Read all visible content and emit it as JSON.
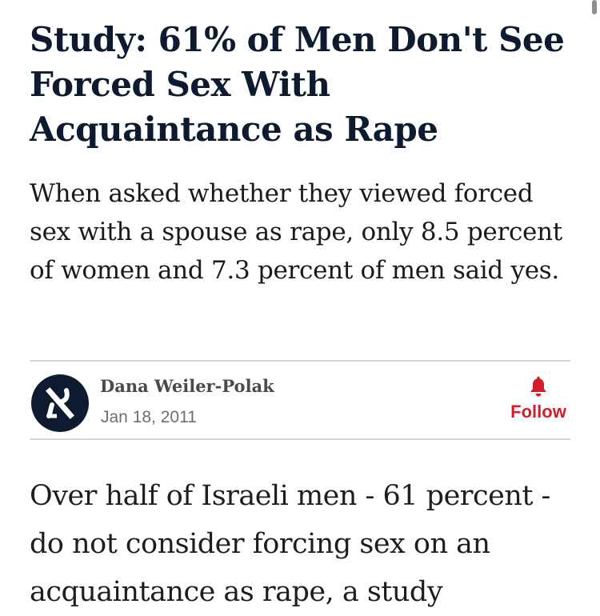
{
  "article": {
    "headline": "Study: 61% of Men Don't See Forced Sex With Acquaintance as Rape",
    "subheadline": "When asked whether they viewed forced sex with a spouse as rape, only 8.5 percent of women and 7.3 percent of men said yes.",
    "body": "Over half of Israeli men - 61 percent - do not consider forcing sex on an acquaintance as rape, a study"
  },
  "byline": {
    "author": "Dana Weiler-Polak",
    "date": "Jan 18, 2011",
    "avatar_icon": "haaretz-logo-icon",
    "follow_icon": "bell-icon",
    "follow_label": "Follow"
  },
  "colors": {
    "headline": "#0e1a30",
    "avatar_bg": "#0e1a30",
    "follow_accent": "#d21e2b",
    "divider": "#d6d6d6"
  }
}
